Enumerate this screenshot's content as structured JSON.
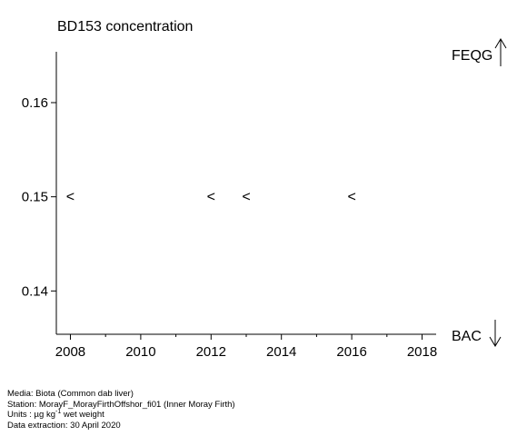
{
  "chart_data": {
    "type": "scatter",
    "title": "BD153 concentration",
    "xlabel": "",
    "ylabel": "",
    "xlim": [
      2007.6,
      2018.4
    ],
    "ylim": [
      0.1354,
      0.1654
    ],
    "x_ticks": [
      2008,
      2010,
      2012,
      2014,
      2016,
      2018
    ],
    "x_minor_ticks": [
      2009,
      2011,
      2013,
      2015,
      2017
    ],
    "y_ticks": [
      0.14,
      0.15,
      0.16
    ],
    "y_tick_labels": [
      "0.14",
      "0.15",
      "0.16"
    ],
    "grid": false,
    "series": [
      {
        "marker": "<",
        "points": [
          {
            "x": 2008,
            "y": 0.15
          },
          {
            "x": 2012,
            "y": 0.15
          },
          {
            "x": 2013,
            "y": 0.15
          },
          {
            "x": 2016,
            "y": 0.15
          }
        ]
      }
    ],
    "reference_labels": {
      "upper": "FEQG",
      "lower": "BAC"
    }
  },
  "footer": {
    "media": "Media: Biota (Common dab liver)",
    "station": "Station: MorayF_MorayFirthOffshor_fi01 (Inner Moray Firth)",
    "units_prefix": "Units : µg kg",
    "units_exp": "-1",
    "units_suffix": " wet weight",
    "extraction": "Data extraction: 30 April 2020"
  }
}
